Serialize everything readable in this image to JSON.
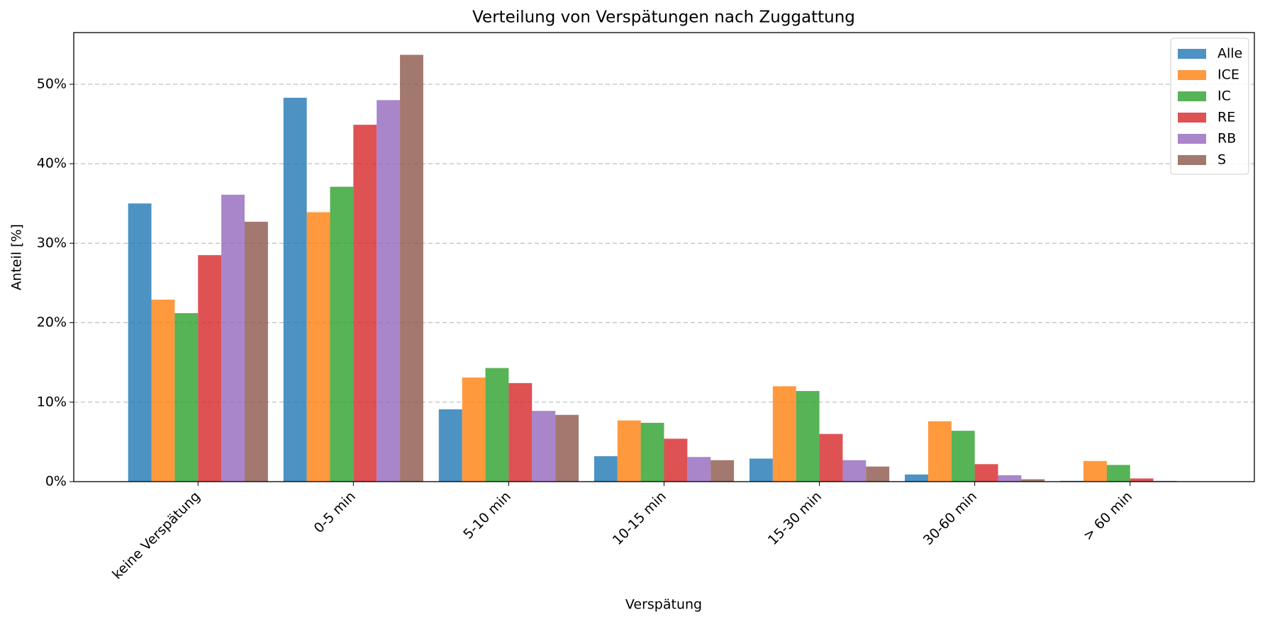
{
  "chart_data": {
    "type": "bar",
    "title": "Verteilung von Verspätungen nach Zuggattung",
    "xlabel": "Verspätung",
    "ylabel": "Anteil [%]",
    "categories": [
      "keine Verspätung",
      "0-5 min",
      "5-10 min",
      "10-15 min",
      "15-30 min",
      "30-60 min",
      "> 60 min"
    ],
    "series": [
      {
        "name": "Alle",
        "color": "#1f77b4",
        "values": [
          35.0,
          48.3,
          9.1,
          3.2,
          2.9,
          0.9,
          0.1
        ]
      },
      {
        "name": "ICE",
        "color": "#ff7f0e",
        "values": [
          22.9,
          33.9,
          13.1,
          7.7,
          12.0,
          7.6,
          2.6
        ]
      },
      {
        "name": "IC",
        "color": "#2ca02c",
        "values": [
          21.2,
          37.1,
          14.3,
          7.4,
          11.4,
          6.4,
          2.1
        ]
      },
      {
        "name": "RE",
        "color": "#d62728",
        "values": [
          28.5,
          44.9,
          12.4,
          5.4,
          6.0,
          2.2,
          0.4
        ]
      },
      {
        "name": "RB",
        "color": "#9467bd",
        "values": [
          36.1,
          48.0,
          8.9,
          3.1,
          2.7,
          0.8,
          0.1
        ]
      },
      {
        "name": "S",
        "color": "#8c564b",
        "values": [
          32.7,
          53.7,
          8.4,
          2.7,
          1.9,
          0.3,
          0.05
        ]
      }
    ],
    "ylim": [
      0,
      56.5
    ],
    "yticks": [
      {
        "value": 0,
        "label": "0%"
      },
      {
        "value": 10,
        "label": "10%"
      },
      {
        "value": 20,
        "label": "20%"
      },
      {
        "value": 30,
        "label": "30%"
      },
      {
        "value": 40,
        "label": "40%"
      },
      {
        "value": 50,
        "label": "50%"
      }
    ],
    "grid": true,
    "legend": "upper right"
  }
}
